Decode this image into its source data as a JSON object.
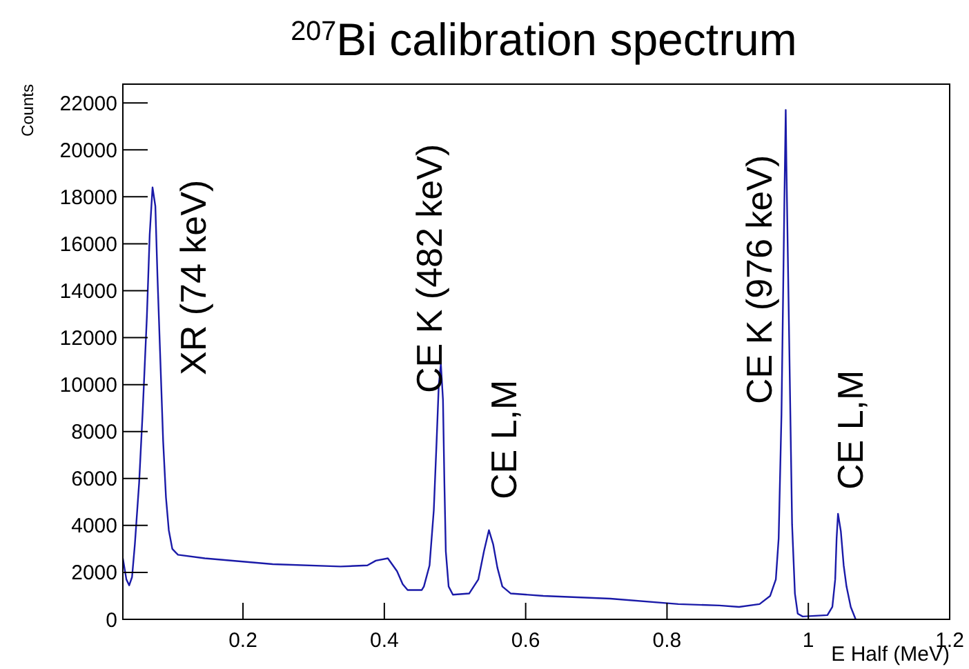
{
  "chart_data": {
    "type": "line",
    "title": "$^{207}$Bi calibration spectrum",
    "xlabel": "E Half (MeV)",
    "ylabel": "Counts",
    "xlim": [
      0.03,
      1.2
    ],
    "xticks": [
      0.2,
      0.4,
      0.6,
      0.8,
      1,
      1.2
    ],
    "ylim": [
      0,
      22800
    ],
    "yticks": [
      0,
      2000,
      4000,
      6000,
      8000,
      10000,
      12000,
      14000,
      16000,
      18000,
      20000,
      22000
    ],
    "grid": false,
    "marker": "none",
    "line_style": "solid",
    "series": [
      {
        "color": "#1a1aa8",
        "x": [
          0.03,
          0.035,
          0.039,
          0.043,
          0.047,
          0.053,
          0.058,
          0.064,
          0.068,
          0.072,
          0.076,
          0.079,
          0.083,
          0.087,
          0.091,
          0.095,
          0.1,
          0.108,
          0.146,
          0.242,
          0.338,
          0.376,
          0.388,
          0.405,
          0.418,
          0.426,
          0.433,
          0.453,
          0.456,
          0.464,
          0.47,
          0.474,
          0.477,
          0.48,
          0.483,
          0.485,
          0.487,
          0.491,
          0.497,
          0.52,
          0.533,
          0.541,
          0.548,
          0.554,
          0.56,
          0.567,
          0.579,
          0.625,
          0.72,
          0.816,
          0.874,
          0.902,
          0.931,
          0.946,
          0.954,
          0.958,
          0.962,
          0.966,
          0.968,
          0.969,
          0.973,
          0.977,
          0.981,
          0.985,
          0.992,
          1.027,
          1.034,
          1.038,
          1.04,
          1.042,
          1.046,
          1.05,
          1.054,
          1.06,
          1.067
        ],
        "values": [
          2600,
          1700,
          1450,
          1800,
          3200,
          5800,
          8800,
          12900,
          16400,
          18400,
          17600,
          14600,
          11100,
          7600,
          5200,
          3800,
          3000,
          2750,
          2600,
          2350,
          2250,
          2300,
          2500,
          2600,
          2050,
          1500,
          1250,
          1250,
          1400,
          2300,
          4650,
          7600,
          9950,
          10900,
          9350,
          5800,
          2900,
          1400,
          1050,
          1100,
          1700,
          2900,
          3800,
          3200,
          2200,
          1400,
          1100,
          1000,
          880,
          650,
          590,
          530,
          650,
          1000,
          1700,
          3450,
          8750,
          17600,
          21700,
          19300,
          11700,
          4050,
          1100,
          240,
          120,
          180,
          530,
          1700,
          3450,
          4500,
          3750,
          2300,
          1400,
          530,
          0
        ]
      }
    ],
    "annotations": [
      "XR (74 keV)",
      "CE K (482 keV)",
      "CE L,M",
      "CE K (976 keV)",
      "CE L,M"
    ]
  }
}
